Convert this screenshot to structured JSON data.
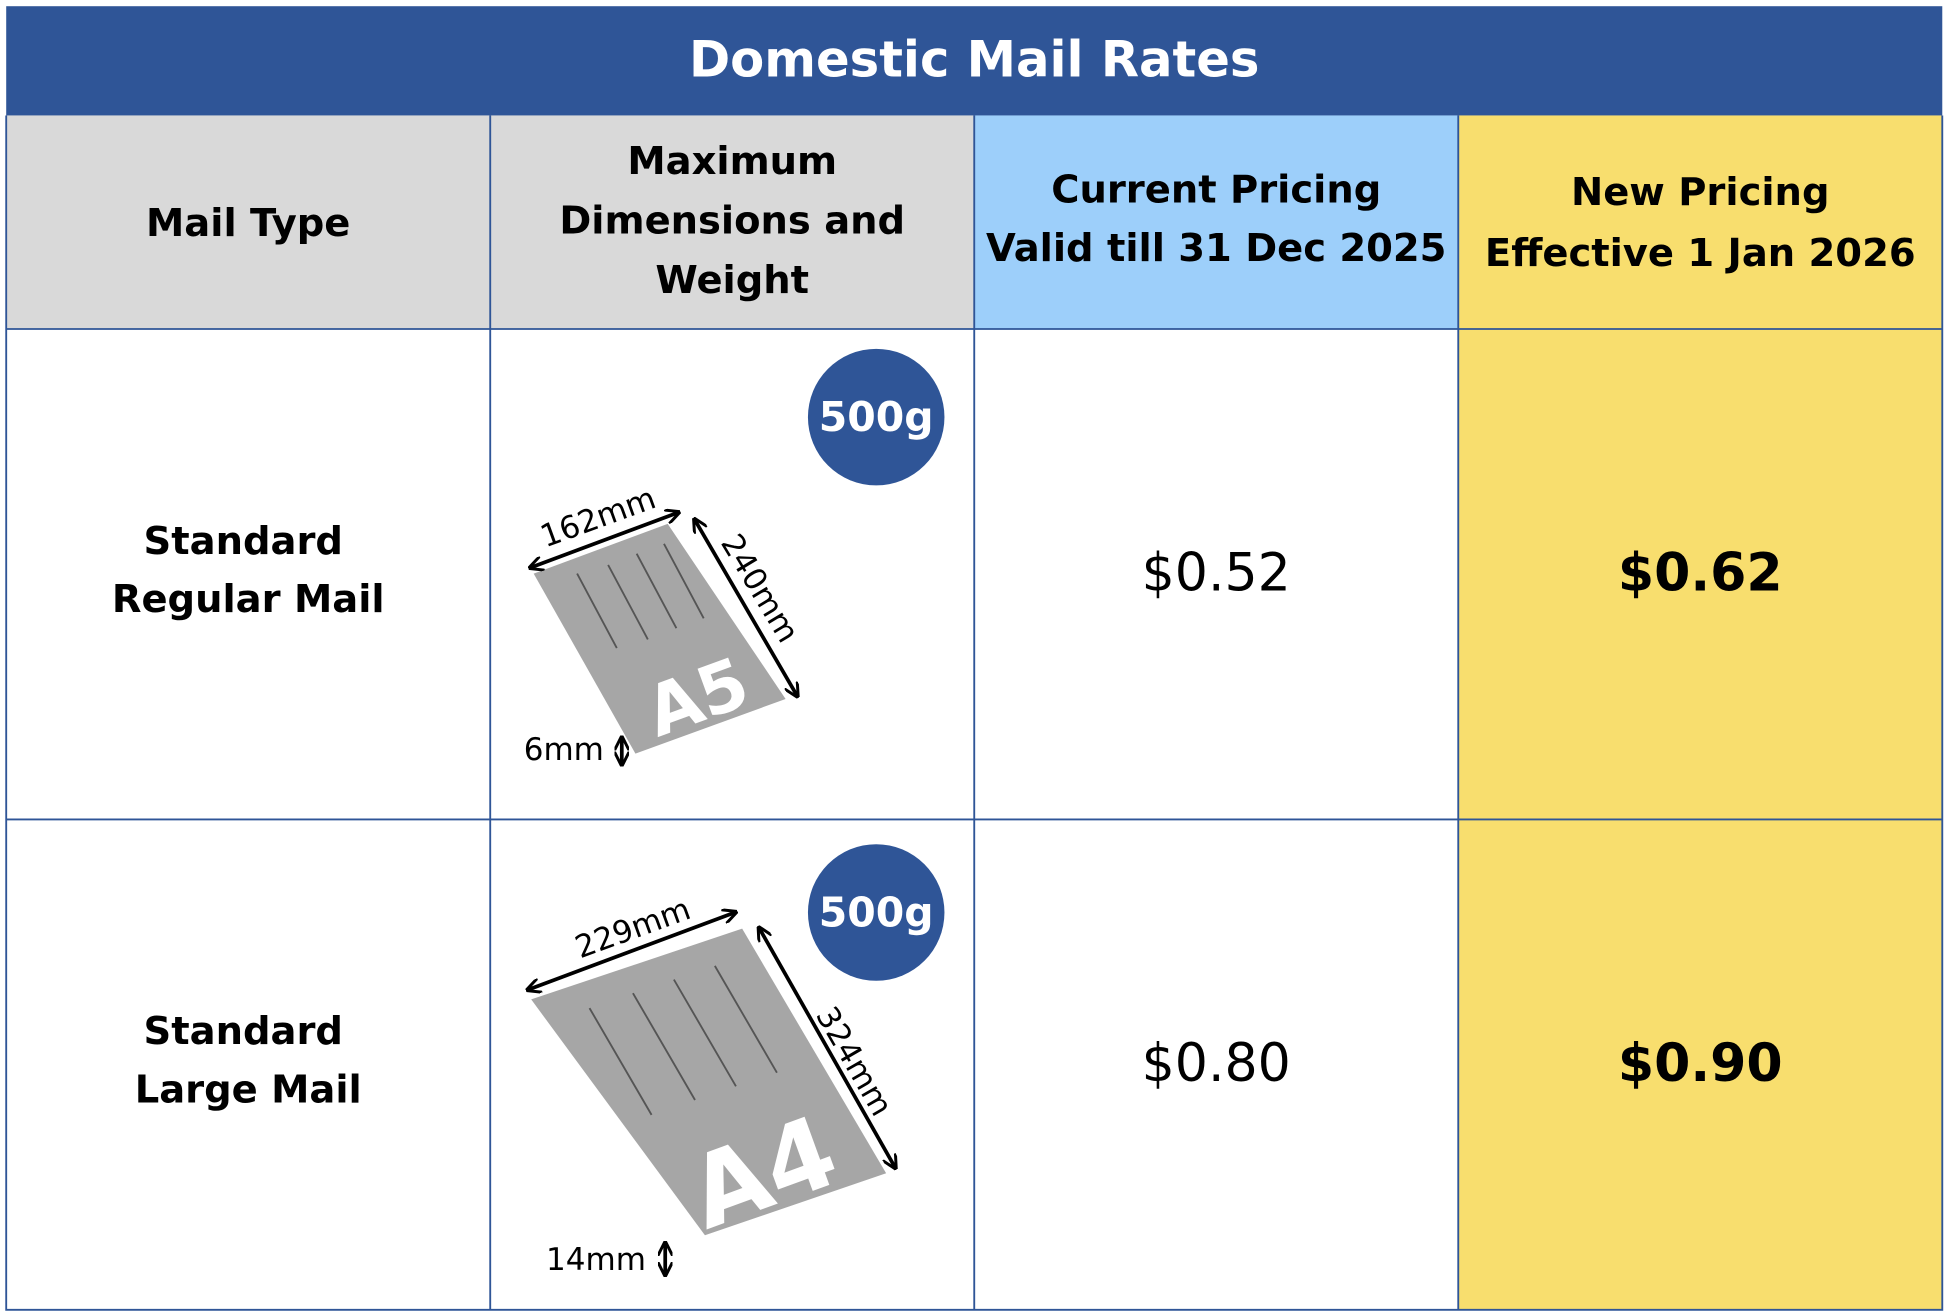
{
  "title": "Domestic Mail Rates",
  "table": {
    "headers": [
      {
        "lines": [
          "Mail Type"
        ]
      },
      {
        "lines": [
          "Maximum",
          "Dimensions and",
          "Weight"
        ]
      },
      {
        "lines": [
          "Current Pricing",
          "Valid till 31 Dec 2025"
        ]
      },
      {
        "lines": [
          "New Pricing",
          "Effective 1 Jan 2026"
        ]
      }
    ],
    "rows": [
      {
        "mail_type": [
          "Standard",
          "Regular Mail"
        ],
        "weight": "500g",
        "width": "162mm",
        "length": "240mm",
        "thickness": "6mm",
        "size": "A5",
        "current_price": "$0.52",
        "new_price": "$0.62"
      },
      {
        "mail_type": [
          "Standard",
          "Large Mail"
        ],
        "weight": "500g",
        "width": "229mm",
        "length": "324mm",
        "thickness": "14mm",
        "size": "A4",
        "current_price": "$0.80",
        "new_price": "$0.90"
      }
    ]
  }
}
